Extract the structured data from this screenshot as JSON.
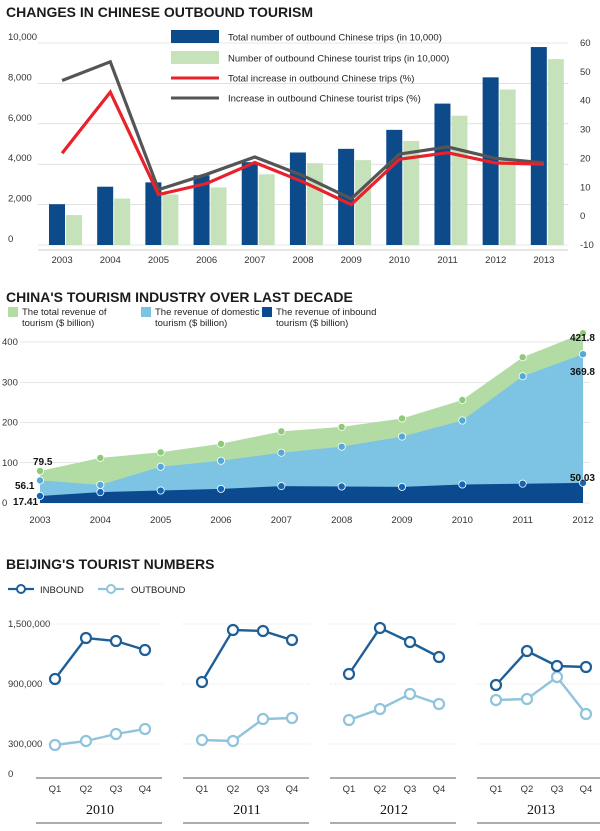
{
  "chart_data": [
    {
      "type": "bar",
      "title": "CHANGES IN CHINESE OUTBOUND TOURISM",
      "categories": [
        "2003",
        "2004",
        "2005",
        "2006",
        "2007",
        "2008",
        "2009",
        "2010",
        "2011",
        "2012",
        "2013"
      ],
      "y_left_ticks": [
        "10,000",
        "8,000",
        "6,000",
        "4,000",
        "2,000",
        "0"
      ],
      "y_right_ticks": [
        "60",
        "50",
        "40",
        "30",
        "20",
        "10",
        "0",
        "-10"
      ],
      "ylim_left": [
        0,
        10000
      ],
      "ylim_right": [
        -10,
        60
      ],
      "series": [
        {
          "name": "Total number of outbound Chinese trips (in 10,000)",
          "kind": "bar",
          "axis": "left",
          "color": "#0d4a8a",
          "values": [
            2020,
            2885,
            3100,
            3450,
            4100,
            4580,
            4760,
            5700,
            7000,
            8300,
            9800
          ]
        },
        {
          "name": "Number of outbound Chinese tourist trips (in 10,000)",
          "kind": "bar",
          "axis": "left",
          "color": "#c5e2bb",
          "values": [
            1480,
            2300,
            2500,
            2850,
            3500,
            4050,
            4200,
            5150,
            6400,
            7700,
            9200
          ]
        },
        {
          "name": "Total increase in outbound Chinese trips (%)",
          "kind": "line",
          "axis": "right",
          "color": "#e8212a",
          "values": [
            21.8,
            43,
            7.5,
            11.3,
            18.6,
            11.9,
            4,
            19.7,
            22,
            18.4,
            18
          ]
        },
        {
          "name": "Increase in outbound Chinese tourist trips (%)",
          "kind": "line",
          "axis": "right",
          "color": "#555555",
          "values": [
            47,
            53.5,
            9.2,
            14.5,
            20.5,
            14,
            6,
            21.5,
            24,
            20,
            18.5
          ]
        }
      ],
      "legend_position": "top-center"
    },
    {
      "type": "area",
      "title": "CHINA'S TOURISM INDUSTRY OVER LAST DECADE",
      "x": [
        "2003",
        "2004",
        "2005",
        "2006",
        "2007",
        "2008",
        "2009",
        "2010",
        "2011",
        "2012"
      ],
      "y_ticks": [
        "400",
        "300",
        "200",
        "100",
        "0"
      ],
      "ylim": [
        0,
        440
      ],
      "series": [
        {
          "name": "The total revenue of tourism ($ billion)",
          "color": "#b3dca4",
          "marker": "#8fc97a",
          "values": [
            79.5,
            112,
            126,
            147,
            178,
            189,
            210,
            256,
            362,
            421.8
          ]
        },
        {
          "name": "The revenue of domestic tourism ($ billion)",
          "color": "#7cc3e4",
          "marker": "#56a9d6",
          "values": [
            56.1,
            45,
            90,
            105,
            125,
            140,
            165,
            205,
            315,
            369.8
          ]
        },
        {
          "name": "The revenue of inbound tourism ($ billion)",
          "color": "#0b4a8f",
          "marker": "#1466b5",
          "values": [
            17.41,
            27,
            31,
            35,
            42,
            41,
            40,
            46,
            48,
            50.03
          ]
        }
      ],
      "data_labels": [
        "79.5",
        "56.1",
        "17.41",
        "421.8",
        "369.8",
        "50.03"
      ]
    },
    {
      "type": "line",
      "title": "BEIJING'S TOURIST NUMBERS",
      "y_ticks": [
        "1,500,000",
        "900,000",
        "300,000",
        "0"
      ],
      "ylim": [
        0,
        1500000
      ],
      "quarters": [
        "Q1",
        "Q2",
        "Q3",
        "Q4"
      ],
      "legend": [
        {
          "name": "INBOUND",
          "color": "#1f5f97"
        },
        {
          "name": "OUTBOUND",
          "color": "#8fc4dc"
        }
      ],
      "panels": [
        {
          "year": "2010",
          "inbound": [
            950000,
            1360000,
            1330000,
            1240000
          ],
          "outbound": [
            290000,
            330000,
            400000,
            450000
          ]
        },
        {
          "year": "2011",
          "inbound": [
            920000,
            1440000,
            1430000,
            1340000
          ],
          "outbound": [
            340000,
            330000,
            550000,
            560000
          ]
        },
        {
          "year": "2012",
          "inbound": [
            1000000,
            1460000,
            1320000,
            1170000
          ],
          "outbound": [
            540000,
            650000,
            800000,
            700000
          ]
        },
        {
          "year": "2013",
          "inbound": [
            890000,
            1230000,
            1080000,
            1070000
          ],
          "outbound": [
            740000,
            750000,
            970000,
            600000
          ]
        }
      ]
    }
  ]
}
